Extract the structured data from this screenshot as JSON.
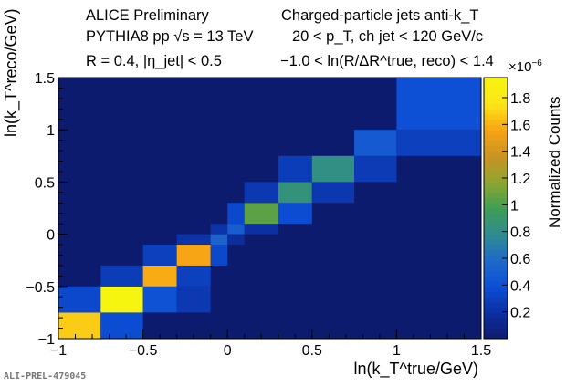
{
  "header": {
    "left_line1": "ALICE Preliminary",
    "left_line2": "PYTHIA8 pp √s = 13 TeV",
    "left_line3": "R = 0.4, |η_jet| < 0.5",
    "right_line1": "Charged-particle jets anti-k_T",
    "right_line2": "20 < p_T, ch jet < 120 GeV/c",
    "right_line3": "−1.0 < ln(R/ΔR^true, reco) < 1.4"
  },
  "footer_id": "ALI-PREL-479045",
  "colorbar": {
    "label": "Normalized Counts",
    "multiplier": "×10",
    "multiplier_exp": "−6"
  },
  "colors": {
    "background_bin": "#0d1b6e",
    "palette": [
      "#0d1b6e",
      "#0c2fa0",
      "#0c4ed6",
      "#1f69c9",
      "#2f8b8f",
      "#3f9e55",
      "#8ea52f",
      "#c99322",
      "#f7a514",
      "#fde517",
      "#f5f50f"
    ]
  },
  "chart_data": {
    "type": "heatmap",
    "xlabel": "ln(k_T^true/GeV)",
    "ylabel": "ln(k_T^reco/GeV)",
    "xlim": [
      -1,
      1.5
    ],
    "ylim": [
      -1,
      1.5
    ],
    "zlim": [
      0,
      1.95
    ],
    "x_ticks": [
      "−1",
      "−0.5",
      "0",
      "0.5",
      "1",
      "1.5"
    ],
    "y_ticks": [
      "−1",
      "−0.5",
      "0",
      "0.5",
      "1",
      "1.5"
    ],
    "z_ticks": [
      "0.2",
      "0.4",
      "0.6",
      "0.8",
      "1",
      "1.2",
      "1.4",
      "1.6",
      "1.8"
    ],
    "bins": [
      {
        "x": [
          -1.0,
          -0.75
        ],
        "y": [
          -1.0,
          -0.75
        ],
        "value": 1.68
      },
      {
        "x": [
          -0.75,
          -0.5
        ],
        "y": [
          -1.0,
          -0.75
        ],
        "value": 0.38
      },
      {
        "x": [
          -1.0,
          -0.75
        ],
        "y": [
          -0.75,
          -0.5
        ],
        "value": 0.35
      },
      {
        "x": [
          -0.75,
          -0.5
        ],
        "y": [
          -0.75,
          -0.5
        ],
        "value": 1.95
      },
      {
        "x": [
          -0.5,
          -0.3
        ],
        "y": [
          -0.75,
          -0.5
        ],
        "value": 0.42
      },
      {
        "x": [
          -0.3,
          -0.1
        ],
        "y": [
          -0.75,
          -0.5
        ],
        "value": 0.26
      },
      {
        "x": [
          -0.75,
          -0.5
        ],
        "y": [
          -0.5,
          -0.3
        ],
        "value": 0.28
      },
      {
        "x": [
          -0.5,
          -0.3
        ],
        "y": [
          -0.5,
          -0.3
        ],
        "value": 1.58
      },
      {
        "x": [
          -0.3,
          -0.1
        ],
        "y": [
          -0.5,
          -0.3
        ],
        "value": 0.3
      },
      {
        "x": [
          -0.5,
          -0.3
        ],
        "y": [
          -0.3,
          -0.1
        ],
        "value": 0.3
      },
      {
        "x": [
          -0.3,
          -0.1
        ],
        "y": [
          -0.3,
          -0.1
        ],
        "value": 1.56
      },
      {
        "x": [
          -0.1,
          0.0
        ],
        "y": [
          -0.3,
          -0.1
        ],
        "value": 0.35
      },
      {
        "x": [
          -0.3,
          -0.1
        ],
        "y": [
          -0.1,
          0.0
        ],
        "value": 0.22
      },
      {
        "x": [
          -0.1,
          0.0
        ],
        "y": [
          -0.1,
          0.0
        ],
        "value": 0.55
      },
      {
        "x": [
          0.0,
          0.1
        ],
        "y": [
          -0.1,
          0.0
        ],
        "value": 0.18
      },
      {
        "x": [
          -0.1,
          0.0
        ],
        "y": [
          0.0,
          0.1
        ],
        "value": 0.22
      },
      {
        "x": [
          0.0,
          0.1
        ],
        "y": [
          0.0,
          0.1
        ],
        "value": 0.5
      },
      {
        "x": [
          0.1,
          0.3
        ],
        "y": [
          0.0,
          0.1
        ],
        "value": 0.2
      },
      {
        "x": [
          0.0,
          0.1
        ],
        "y": [
          0.1,
          0.3
        ],
        "value": 0.35
      },
      {
        "x": [
          0.1,
          0.3
        ],
        "y": [
          0.1,
          0.3
        ],
        "value": 1.05
      },
      {
        "x": [
          0.3,
          0.5
        ],
        "y": [
          0.1,
          0.3
        ],
        "value": 0.38
      },
      {
        "x": [
          0.1,
          0.3
        ],
        "y": [
          0.3,
          0.5
        ],
        "value": 0.26
      },
      {
        "x": [
          0.3,
          0.5
        ],
        "y": [
          0.3,
          0.5
        ],
        "value": 0.85
      },
      {
        "x": [
          0.5,
          0.75
        ],
        "y": [
          0.3,
          0.5
        ],
        "value": 0.25
      },
      {
        "x": [
          0.3,
          0.5
        ],
        "y": [
          0.5,
          0.75
        ],
        "value": 0.28
      },
      {
        "x": [
          0.5,
          0.75
        ],
        "y": [
          0.5,
          0.75
        ],
        "value": 0.82
      },
      {
        "x": [
          0.75,
          1.0
        ],
        "y": [
          0.5,
          0.75
        ],
        "value": 0.27
      },
      {
        "x": [
          0.75,
          1.0
        ],
        "y": [
          0.75,
          1.0
        ],
        "value": 0.48
      },
      {
        "x": [
          1.0,
          1.5
        ],
        "y": [
          0.75,
          1.0
        ],
        "value": 0.3
      },
      {
        "x": [
          1.0,
          1.5
        ],
        "y": [
          1.0,
          1.5
        ],
        "value": 0.4
      }
    ]
  }
}
